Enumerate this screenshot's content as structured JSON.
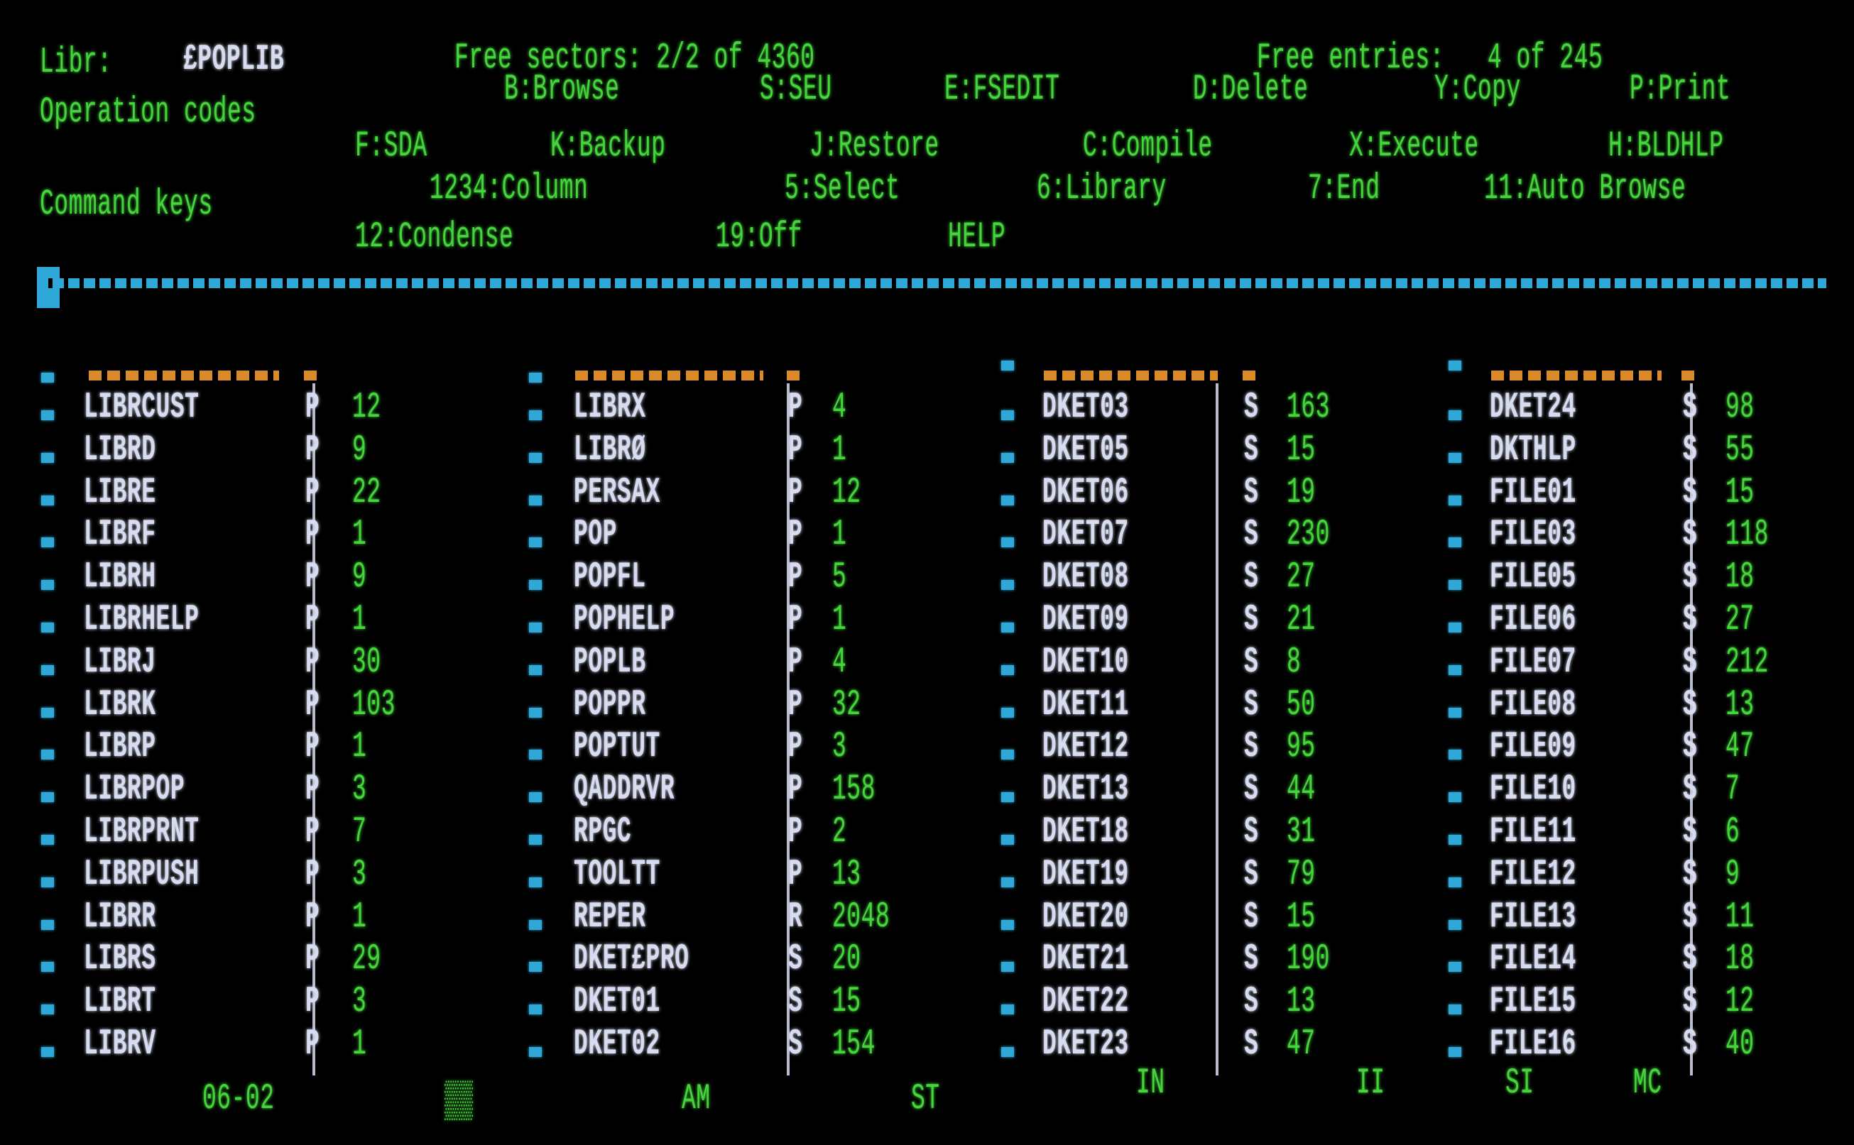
{
  "header": {
    "library_label": "Libr:",
    "library_name": "£POPLIB",
    "free_sectors": "Free sectors: 2/2 of 4360",
    "free_entries": "Free entries:   4 of 245"
  },
  "operation_codes": {
    "label": "Operation codes",
    "row1": [
      "B:Browse",
      "S:SEU",
      "E:FSEDIT",
      "D:Delete",
      "Y:Copy",
      "P:Print"
    ],
    "row2": [
      "F:SDA",
      "K:Backup",
      "J:Restore",
      "C:Compile",
      "X:Execute",
      "H:BLDHLP"
    ]
  },
  "command_keys": {
    "label": "Command keys",
    "row1": [
      "1234:Column",
      "5:Select",
      "6:Library",
      "7:End",
      "11:Auto Browse"
    ],
    "row2": [
      "12:Condense",
      "19:Off",
      "HELP"
    ]
  },
  "colors": {
    "text": "#45d43c",
    "names": "#d8dcf0",
    "bullets": "#2fa8d8",
    "headers": "#d98a2a"
  },
  "columns": [
    [
      [
        "LIBRCUST",
        "P",
        "12"
      ],
      [
        "LIBRD",
        "P",
        "9"
      ],
      [
        "LIBRE",
        "P",
        "22"
      ],
      [
        "LIBRF",
        "P",
        "1"
      ],
      [
        "LIBRH",
        "P",
        "9"
      ],
      [
        "LIBRHELP",
        "P",
        "1"
      ],
      [
        "LIBRJ",
        "P",
        "30"
      ],
      [
        "LIBRK",
        "P",
        "103"
      ],
      [
        "LIBRP",
        "P",
        "1"
      ],
      [
        "LIBRPOP",
        "P",
        "3"
      ],
      [
        "LIBRPRNT",
        "P",
        "7"
      ],
      [
        "LIBRPUSH",
        "P",
        "3"
      ],
      [
        "LIBRR",
        "P",
        "1"
      ],
      [
        "LIBRS",
        "P",
        "29"
      ],
      [
        "LIBRT",
        "P",
        "3"
      ],
      [
        "LIBRV",
        "P",
        "1"
      ]
    ],
    [
      [
        "LIBRX",
        "P",
        "4"
      ],
      [
        "LIBRØ",
        "P",
        "1"
      ],
      [
        "PERSAX",
        "P",
        "12"
      ],
      [
        "POP",
        "P",
        "1"
      ],
      [
        "POPFL",
        "P",
        "5"
      ],
      [
        "POPHELP",
        "P",
        "1"
      ],
      [
        "POPLB",
        "P",
        "4"
      ],
      [
        "POPPR",
        "P",
        "32"
      ],
      [
        "POPTUT",
        "P",
        "3"
      ],
      [
        "QADDRVR",
        "P",
        "158"
      ],
      [
        "RPGC",
        "P",
        "2"
      ],
      [
        "TOOLTT",
        "P",
        "13"
      ],
      [
        "REPER",
        "R",
        "2048"
      ],
      [
        "DKET£PRO",
        "S",
        "20"
      ],
      [
        "DKET01",
        "S",
        "15"
      ],
      [
        "DKET02",
        "S",
        "154"
      ]
    ],
    [
      [
        "DKET03",
        "S",
        "163"
      ],
      [
        "DKET05",
        "S",
        "15"
      ],
      [
        "DKET06",
        "S",
        "19"
      ],
      [
        "DKET07",
        "S",
        "230"
      ],
      [
        "DKET08",
        "S",
        "27"
      ],
      [
        "DKET09",
        "S",
        "21"
      ],
      [
        "DKET10",
        "S",
        "8"
      ],
      [
        "DKET11",
        "S",
        "50"
      ],
      [
        "DKET12",
        "S",
        "95"
      ],
      [
        "DKET13",
        "S",
        "44"
      ],
      [
        "DKET18",
        "S",
        "31"
      ],
      [
        "DKET19",
        "S",
        "79"
      ],
      [
        "DKET20",
        "S",
        "15"
      ],
      [
        "DKET21",
        "S",
        "190"
      ],
      [
        "DKET22",
        "S",
        "13"
      ],
      [
        "DKET23",
        "S",
        "47"
      ]
    ],
    [
      [
        "DKET24",
        "S",
        "98"
      ],
      [
        "DKTHLP",
        "S",
        "55"
      ],
      [
        "FILE01",
        "S",
        "15"
      ],
      [
        "FILE03",
        "S",
        "118"
      ],
      [
        "FILE05",
        "S",
        "18"
      ],
      [
        "FILE06",
        "S",
        "27"
      ],
      [
        "FILE07",
        "S",
        "212"
      ],
      [
        "FILE08",
        "S",
        "13"
      ],
      [
        "FILE09",
        "S",
        "47"
      ],
      [
        "FILE10",
        "S",
        "7"
      ],
      [
        "FILE11",
        "S",
        "6"
      ],
      [
        "FILE12",
        "S",
        "9"
      ],
      [
        "FILE13",
        "S",
        "11"
      ],
      [
        "FILE14",
        "S",
        "18"
      ],
      [
        "FILE15",
        "S",
        "12"
      ],
      [
        "FILE16",
        "S",
        "40"
      ]
    ]
  ],
  "status_line": {
    "date": "06-02",
    "indicators": [
      "AM",
      "ST",
      "IN",
      "II",
      "SI",
      "MC"
    ]
  }
}
